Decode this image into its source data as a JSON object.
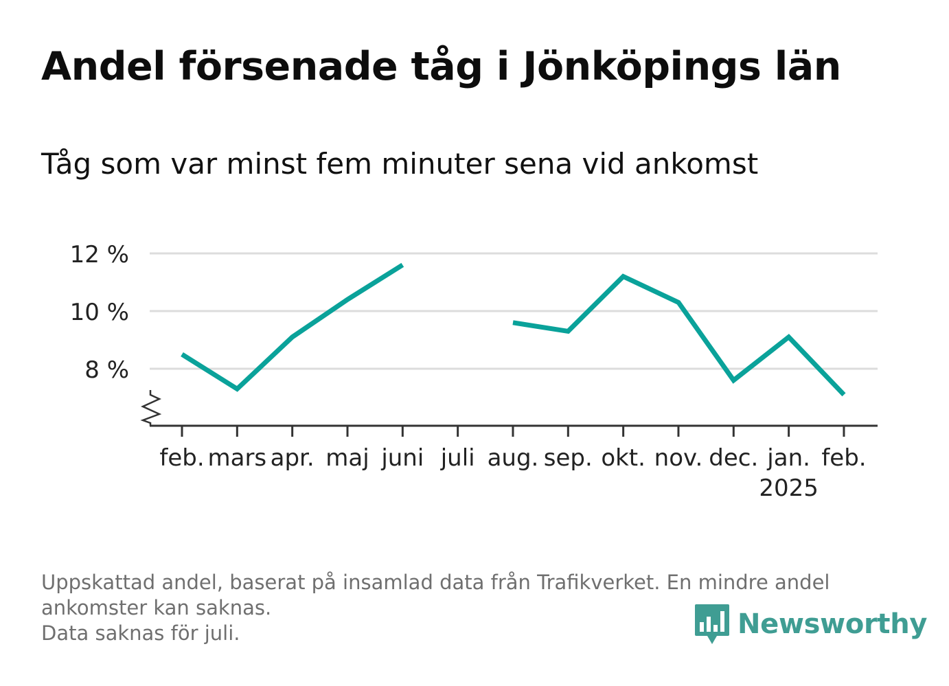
{
  "title": "Andel försenade tåg i Jönköpings län",
  "subtitle": "Tåg som var minst fem minuter sena vid ankomst",
  "footer": {
    "line1": "Uppskattad andel, baserat på insamlad data från Trafikverket. En mindre andel",
    "line2": "ankomster kan saknas.",
    "line3": "Data saknas för juli."
  },
  "brand": {
    "name": "Newsworthy",
    "color": "#3f9d93",
    "icon": "bar-chart-speech-bubble-icon"
  },
  "colors": {
    "line": "#0aa29a",
    "grid": "#dcdcdc",
    "axis": "#333333"
  },
  "chart_data": {
    "type": "line",
    "categories": [
      "feb.",
      "mars",
      "apr.",
      "maj",
      "juni",
      "juli",
      "aug.",
      "sep.",
      "okt.",
      "nov.",
      "dec.",
      "jan.",
      "feb."
    ],
    "category_sublabels": [
      "",
      "",
      "",
      "",
      "",
      "",
      "",
      "",
      "",
      "",
      "",
      "2025",
      ""
    ],
    "series": [
      {
        "values": [
          8.5,
          7.3,
          9.1,
          10.4,
          11.6,
          null,
          9.6,
          9.3,
          11.2,
          10.3,
          7.6,
          9.1,
          7.1
        ]
      }
    ],
    "yticks": [
      8,
      10,
      12
    ],
    "ytick_labels": [
      "8 %",
      "10 %",
      "12 %"
    ],
    "ylim": [
      6,
      12
    ],
    "axis_break": true,
    "grid": true,
    "xlabel": "",
    "ylabel": ""
  }
}
